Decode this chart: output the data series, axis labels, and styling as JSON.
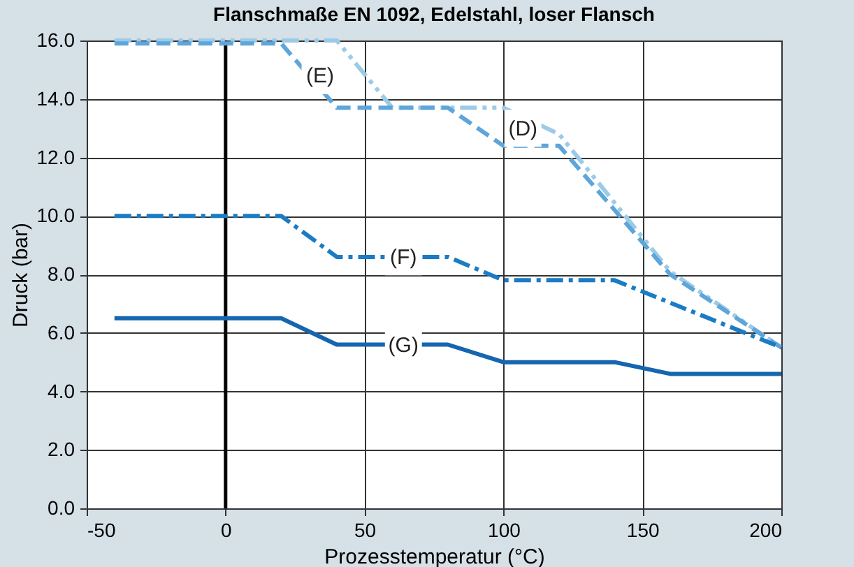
{
  "chart_data": {
    "type": "line",
    "title": "Flanschmaße EN 1092, Edelstahl, loser Flansch",
    "xlabel": "Prozesstemperatur (°C)",
    "ylabel": "Druck (bar)",
    "series": [
      {
        "color": "#9ccbe8",
        "line_style": "dashdotdot",
        "x": [
          -40,
          40,
          60,
          100,
          120,
          160,
          200
        ],
        "values": [
          16.0,
          16.0,
          13.7,
          13.7,
          12.8,
          8.1,
          5.5
        ]
      },
      {
        "color": "#5ea5da",
        "line_style": "dashed",
        "x": [
          -40,
          20,
          40,
          80,
          100,
          120,
          160,
          200
        ],
        "values": [
          15.9,
          15.9,
          13.7,
          13.7,
          12.4,
          12.4,
          8.0,
          5.5
        ]
      },
      {
        "color": "#1a7cc4",
        "line_style": "dashdot",
        "x": [
          -40,
          20,
          40,
          80,
          100,
          140,
          200
        ],
        "values": [
          10.0,
          10.0,
          8.6,
          8.6,
          7.8,
          7.8,
          5.5
        ]
      },
      {
        "color": "#1565b0",
        "line_style": "solid",
        "x": [
          -40,
          20,
          40,
          80,
          100,
          140,
          160,
          200
        ],
        "values": [
          6.5,
          6.5,
          5.6,
          5.6,
          5.0,
          5.0,
          4.6,
          4.6
        ]
      }
    ],
    "annotations": [
      {
        "text": "(D)",
        "x": 107,
        "y": 13.0
      },
      {
        "text": "(E)",
        "x": 34,
        "y": 14.8
      },
      {
        "text": "(F)",
        "x": 64,
        "y": 8.6
      },
      {
        "text": "(G)",
        "x": 64,
        "y": 5.6
      }
    ],
    "ref_lines": [
      {
        "axis": "x",
        "value": 0,
        "color": "#000000"
      }
    ],
    "xlim": [
      -50,
      200
    ],
    "xticks": [
      -50,
      0,
      50,
      100,
      150,
      200
    ],
    "ylim": [
      0,
      16
    ],
    "yticks": [
      {
        "value": 0,
        "label": "0.0"
      },
      {
        "value": 2,
        "label": "2.0"
      },
      {
        "value": 4,
        "label": "4.0"
      },
      {
        "value": 6,
        "label": "6.0"
      },
      {
        "value": 8,
        "label": "8.0"
      },
      {
        "value": 10,
        "label": "10.0"
      },
      {
        "value": 12,
        "label": "12.0"
      },
      {
        "value": 14,
        "label": "14.0"
      },
      {
        "value": 16,
        "label": "16.0"
      }
    ],
    "grid": true
  }
}
